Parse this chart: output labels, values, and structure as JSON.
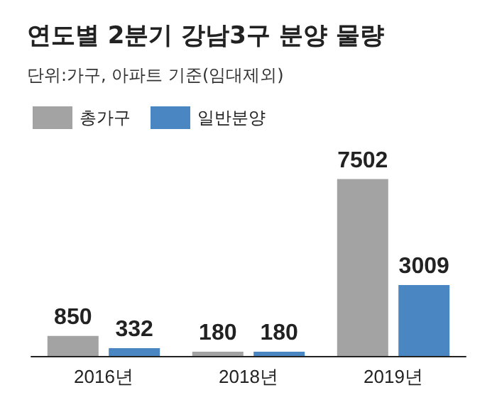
{
  "chart_data": {
    "type": "bar",
    "title": "연도별 2분기 강남3구 분양 물량",
    "subtitle": "단위:가구, 아파트 기준(임대제외)",
    "categories": [
      "2016년",
      "2018년",
      "2019년"
    ],
    "series": [
      {
        "name": "총가구",
        "color": "#a3a3a3",
        "values": [
          850,
          180,
          7502
        ]
      },
      {
        "name": "일반분양",
        "color": "#4a86c2",
        "values": [
          332,
          180,
          3009
        ]
      }
    ],
    "data_labels": true,
    "legend": "top left"
  }
}
